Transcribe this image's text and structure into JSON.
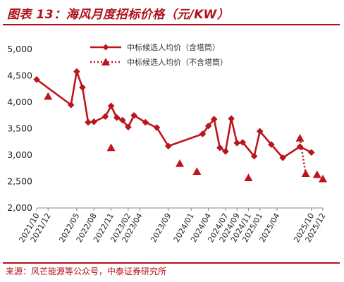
{
  "header": {
    "title": "图表 13：海风月度招标价格（元/KW）"
  },
  "footer": {
    "source": "来源：风芒能源等公众号，中泰证券研究所"
  },
  "colors": {
    "line": "#c0141c",
    "marker": "#c0141c",
    "title": "#b0121b"
  },
  "chart_data": {
    "type": "line",
    "title": "图表 13：海风月度招标价格（元/KW）",
    "xlabel": "",
    "ylabel": "",
    "ylim": [
      2000,
      5000
    ],
    "yticks": [
      "2,000",
      "2,500",
      "3,000",
      "3,500",
      "4,000",
      "4,500",
      "5,000"
    ],
    "x": [
      "2021/10",
      "2021/11",
      "2021/12",
      "2022/01",
      "2022/02",
      "2022/03",
      "2022/04",
      "2022/05",
      "2022/06",
      "2022/07",
      "2022/08",
      "2022/09",
      "2022/10",
      "2022/11",
      "2022/12",
      "2023/01",
      "2023/02",
      "2023/03",
      "2023/04",
      "2023/05",
      "2023/06",
      "2023/07",
      "2023/08",
      "2023/09",
      "2023/10",
      "2023/11",
      "2023/12",
      "2024/01",
      "2024/02",
      "2024/03",
      "2024/04",
      "2024/05",
      "2024/06",
      "2024/07",
      "2024/08",
      "2024/09",
      "2024/10",
      "2024/11",
      "2024/12",
      "2025/01",
      "2025/02",
      "2025/03",
      "2025/04",
      "2025/05",
      "2025/06",
      "2025/07",
      "2025/08",
      "2025/09",
      "2025/10",
      "2025/11",
      "2025/12"
    ],
    "xtick_labels": [
      "2021/10",
      "2021/12",
      "2022/05",
      "2022/08",
      "2022/11",
      "2023/02",
      "2023/04",
      "2023/09",
      "2024/01",
      "2024/04",
      "2024/07",
      "2024/09",
      "2024/11",
      "2025/01",
      "2025/04",
      "2025/10",
      "2025/12"
    ],
    "legend_position": "top-right",
    "grid": false,
    "series": [
      {
        "name": "中标候选人均价（含塔筒）",
        "style": "solid line with diamond markers",
        "points": [
          {
            "x": "2021/10",
            "y": 4430
          },
          {
            "x": "2022/04",
            "y": 3950,
            "break_after": false
          },
          {
            "x": "2022/05",
            "y": 4580
          },
          {
            "x": "2022/06",
            "y": 4280
          },
          {
            "x": "2022/07",
            "y": 3620
          },
          {
            "x": "2022/08",
            "y": 3630
          },
          {
            "x": "2022/10",
            "y": 3730
          },
          {
            "x": "2022/11",
            "y": 3930
          },
          {
            "x": "2022/12",
            "y": 3710
          },
          {
            "x": "2023/01",
            "y": 3660
          },
          {
            "x": "2023/02",
            "y": 3530
          },
          {
            "x": "2023/03",
            "y": 3750
          },
          {
            "x": "2023/05",
            "y": 3620
          },
          {
            "x": "2023/07",
            "y": 3520
          },
          {
            "x": "2023/09",
            "y": 3170
          },
          {
            "x": "2024/03",
            "y": 3400
          },
          {
            "x": "2024/04",
            "y": 3550
          },
          {
            "x": "2024/05",
            "y": 3680
          },
          {
            "x": "2024/06",
            "y": 3140
          },
          {
            "x": "2024/07",
            "y": 3070
          },
          {
            "x": "2024/08",
            "y": 3690
          },
          {
            "x": "2024/09",
            "y": 3230
          },
          {
            "x": "2024/10",
            "y": 3240
          },
          {
            "x": "2024/12",
            "y": 2980
          },
          {
            "x": "2025/01",
            "y": 3450
          },
          {
            "x": "2025/03",
            "y": 3200
          },
          {
            "x": "2025/05",
            "y": 2950
          },
          {
            "x": "2025/08",
            "y": 3160
          },
          {
            "x": "2025/10",
            "y": 3050
          }
        ]
      },
      {
        "name": "中标候选人均价（不含塔筒）",
        "style": "dotted line with triangle markers",
        "points": [
          {
            "x": "2021/12",
            "y": 4110
          },
          {
            "x": "2022/11",
            "y": 3140
          },
          {
            "x": "2023/11",
            "y": 2840
          },
          {
            "x": "2024/02",
            "y": 2690
          },
          {
            "x": "2024/11",
            "y": 2570
          },
          {
            "x": "2025/08",
            "y": 3320
          },
          {
            "x": "2025/09",
            "y": 2650
          },
          {
            "x": "2025/11",
            "y": 2630
          },
          {
            "x": "2025/12",
            "y": 2550
          }
        ]
      }
    ]
  }
}
